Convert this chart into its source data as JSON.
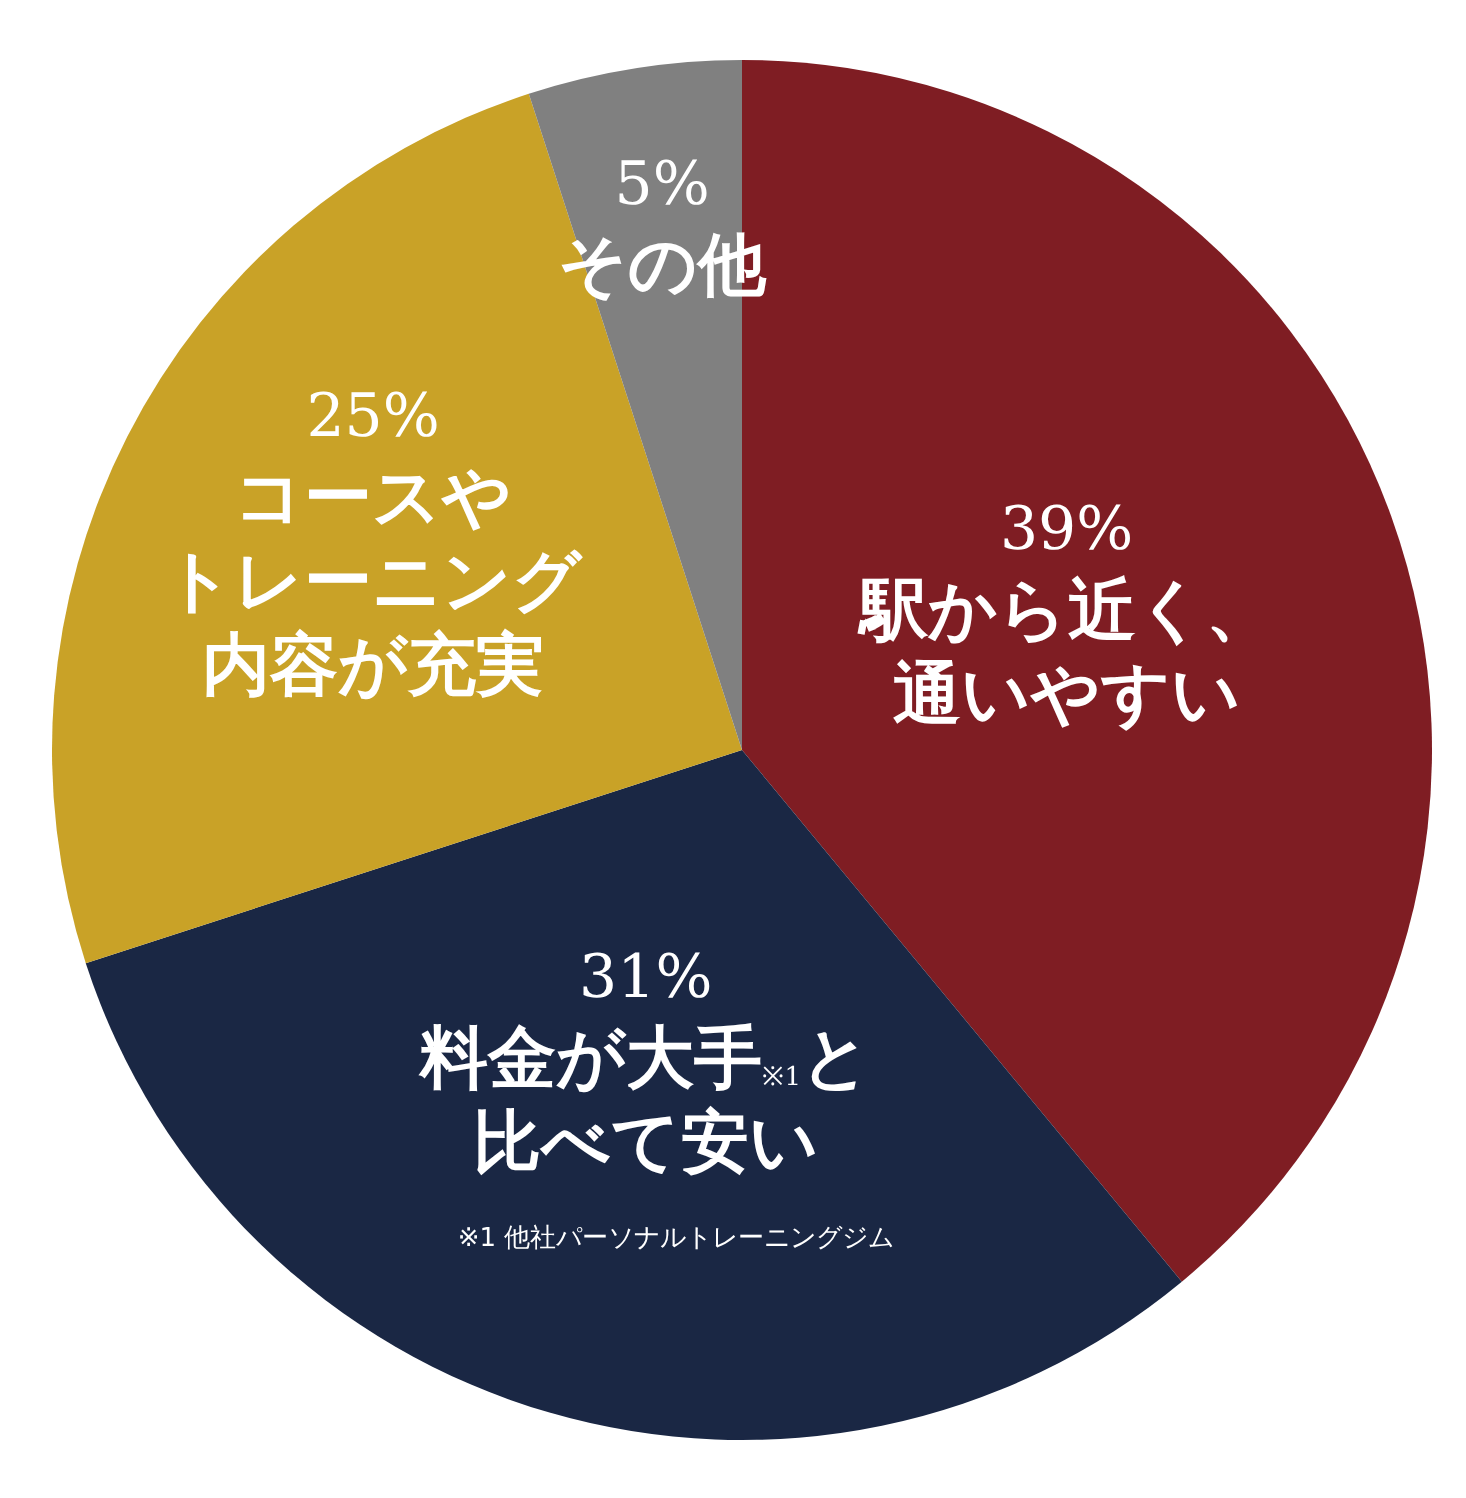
{
  "chart_data": {
    "type": "pie",
    "categories": [
      "駅から近く、通いやすい",
      "料金が大手$_{※1}$と比べて安い",
      "コースやトレーニング内容が充実",
      "その他"
    ],
    "values": [
      39,
      31,
      25,
      5
    ],
    "value_labels": [
      "39%",
      "31%",
      "25%",
      "5%"
    ],
    "colors": [
      "#7f1d23",
      "#1a2744",
      "#c9a227",
      "#808080"
    ],
    "annotations": [
      "※1 他社パーソナルトレーニングジム"
    ]
  }
}
